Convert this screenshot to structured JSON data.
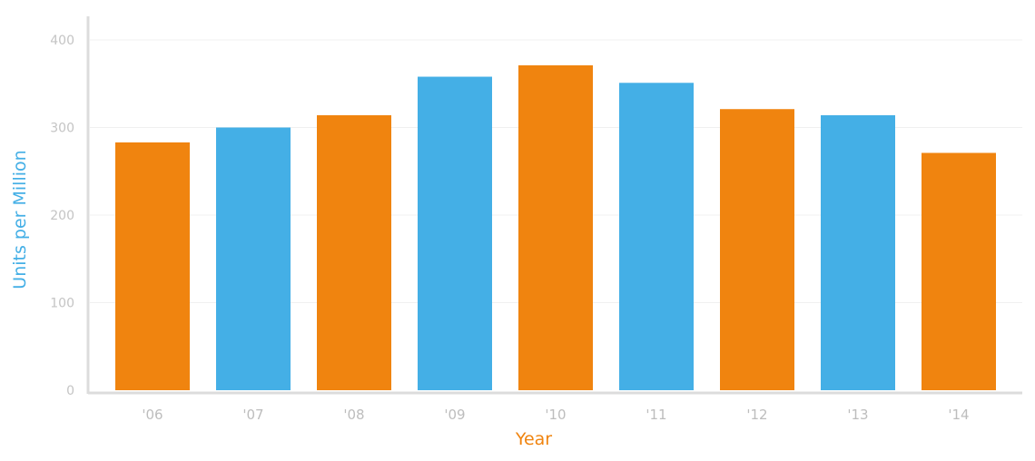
{
  "chart_data": {
    "type": "bar",
    "categories": [
      "'06",
      "'07",
      "'08",
      "'09",
      "'10",
      "'11",
      "'12",
      "'13",
      "'14"
    ],
    "values": [
      283,
      300,
      314,
      358,
      371,
      351,
      321,
      314,
      271
    ],
    "bar_colors": [
      "#f0840f",
      "#44afe6",
      "#f0840f",
      "#44afe6",
      "#f0840f",
      "#44afe6",
      "#f0840f",
      "#44afe6",
      "#f0840f"
    ],
    "title": "",
    "xlabel": "Year",
    "ylabel": "Units per Million",
    "ylim": [
      0,
      400
    ],
    "yticks": [
      "0",
      "100",
      "200",
      "300",
      "400"
    ],
    "grid": true,
    "colors": {
      "xlabel": "#f0840f",
      "ylabel": "#44afe6",
      "orange": "#f0840f",
      "blue": "#44afe6"
    }
  }
}
